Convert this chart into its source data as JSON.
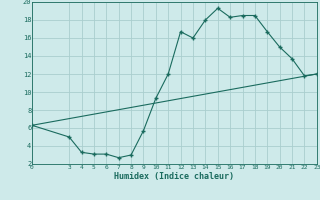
{
  "xlabel": "Humidex (Indice chaleur)",
  "bg_color": "#ceeaea",
  "grid_color": "#aacece",
  "line_color": "#1a6b5e",
  "curve1_x": [
    0,
    3,
    4,
    5,
    6,
    7,
    8,
    9,
    10,
    11,
    12,
    13,
    14,
    15,
    16,
    17,
    18,
    19,
    20,
    21,
    22,
    23
  ],
  "curve1_y": [
    6.3,
    5.0,
    3.3,
    3.1,
    3.1,
    2.7,
    3.0,
    5.7,
    9.3,
    12.0,
    16.7,
    16.0,
    18.0,
    19.3,
    18.3,
    18.5,
    18.5,
    16.7,
    15.0,
    13.7,
    11.8,
    12.0
  ],
  "curve2_x": [
    0,
    23
  ],
  "curve2_y": [
    6.3,
    12.0
  ],
  "xlim": [
    0,
    23
  ],
  "ylim": [
    2,
    20
  ],
  "yticks": [
    2,
    4,
    6,
    8,
    10,
    12,
    14,
    16,
    18,
    20
  ],
  "xticks": [
    0,
    3,
    4,
    5,
    6,
    7,
    8,
    9,
    10,
    11,
    12,
    13,
    14,
    15,
    16,
    17,
    18,
    19,
    20,
    21,
    22,
    23
  ]
}
